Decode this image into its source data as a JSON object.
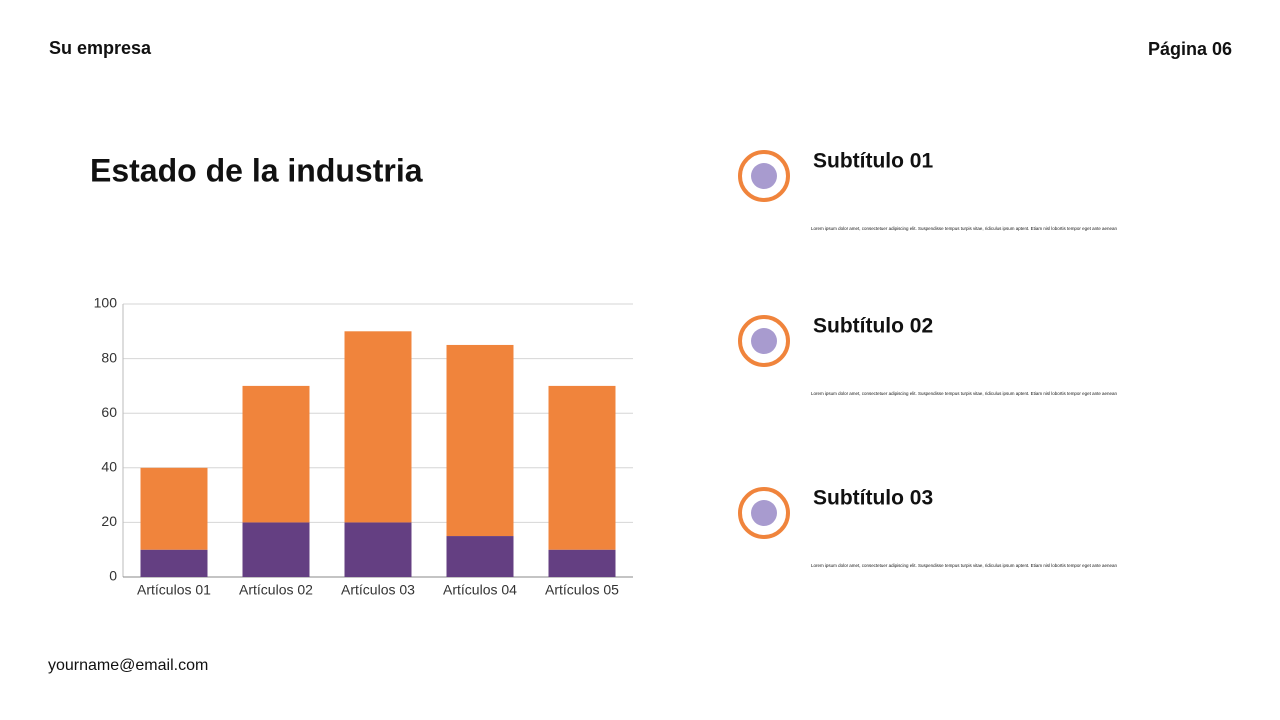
{
  "header": {
    "company": "Su empresa",
    "page": "Página 06"
  },
  "chart_data": {
    "type": "stacked-bar",
    "title": "Estado de la industria",
    "categories": [
      "Artículos 01",
      "Artículos 02",
      "Artículos 03",
      "Artículos 04",
      "Artículos 05"
    ],
    "series": [
      {
        "color": "#643f82",
        "values": [
          10,
          20,
          20,
          15,
          10
        ]
      },
      {
        "color": "#f0843c",
        "values": [
          30,
          50,
          70,
          70,
          60
        ]
      }
    ],
    "ylim": [
      0,
      100
    ],
    "yticks": [
      0,
      20,
      40,
      60,
      80,
      100
    ],
    "grid": true
  },
  "items": [
    {
      "title": "Subtítulo 01",
      "text": "Lorem ipsum dolor amet, consectetuer adipiscing elit. Suspendisse tempus turpis vitae, ridiculus ipsum aptent. Etiam nisl lobortis tempor eget ante aenean"
    },
    {
      "title": "Subtítulo 02",
      "text": "Lorem ipsum dolor amet, consectetuer adipiscing elit. Suspendisse tempus turpis vitae, ridiculus ipsum aptent. Etiam nisl lobortis tempor eget ante aenean"
    },
    {
      "title": "Subtítulo 03",
      "text": "Lorem ipsum dolor amet, consectetuer adipiscing elit. Suspendisse tempus turpis vitae, ridiculus ipsum aptent. Etiam nisl lobortis tempor eget ante aenean"
    }
  ],
  "footer": {
    "email": "yourname@email.com"
  }
}
